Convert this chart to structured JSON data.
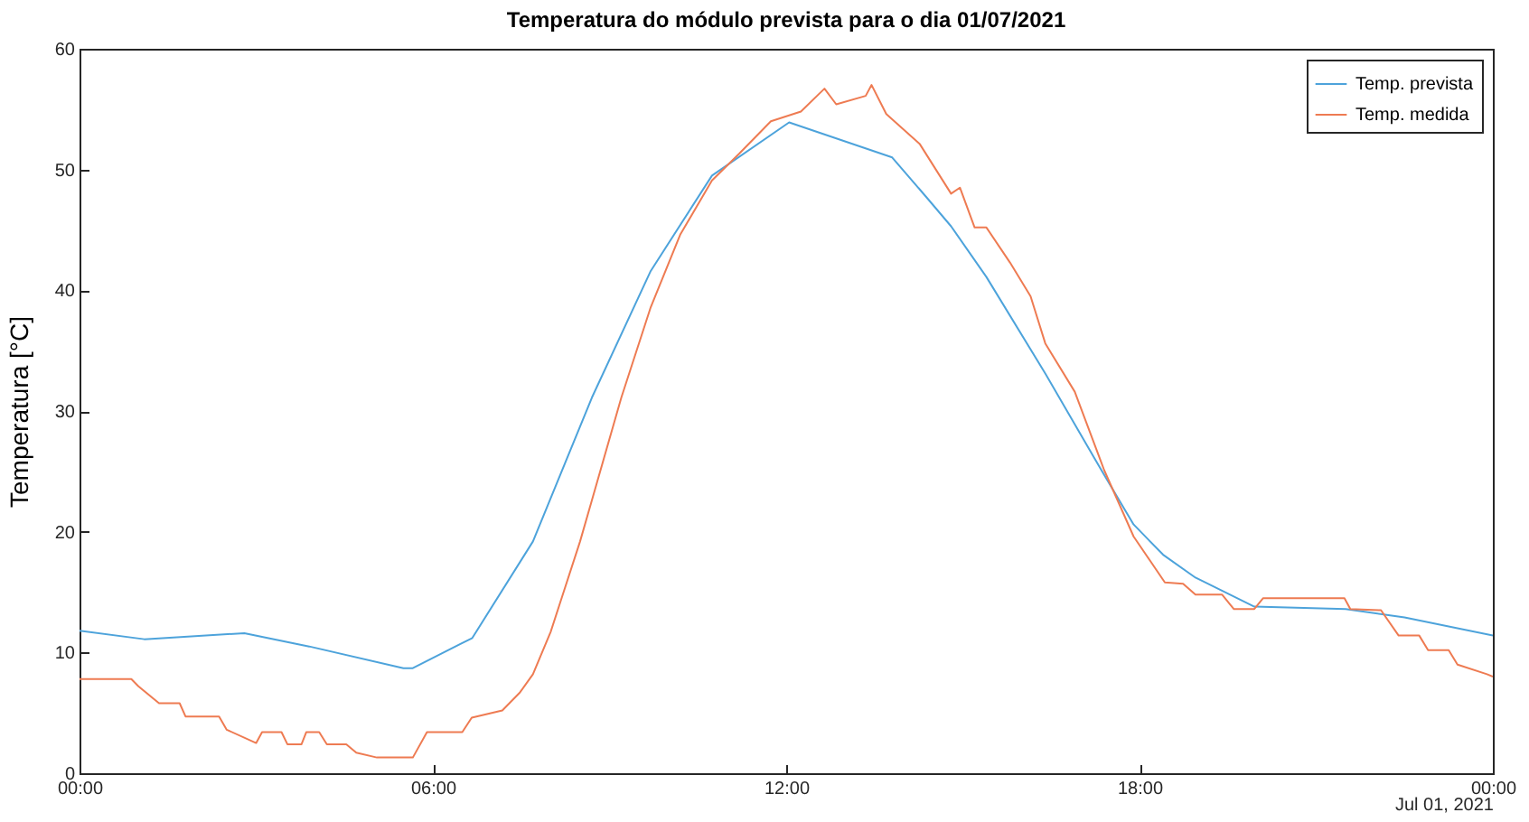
{
  "chart_data": {
    "type": "line",
    "title": "Temperatura do módulo prevista para o dia 01/07/2021",
    "ylabel": "Temperatura [°C]",
    "annotations": [
      "Jul 01, 2021"
    ],
    "xlim": [
      0,
      24
    ],
    "xticks": [
      {
        "value": 0,
        "label": "00:00"
      },
      {
        "value": 6,
        "label": "06:00"
      },
      {
        "value": 12,
        "label": "12:00"
      },
      {
        "value": 18,
        "label": "18:00"
      },
      {
        "value": 24,
        "label": "00:00"
      }
    ],
    "ylim": [
      0,
      60
    ],
    "yticks": [
      0,
      10,
      20,
      30,
      40,
      50,
      60
    ],
    "grid": false,
    "legend": "top right",
    "series": [
      {
        "name": "Temp. prevista",
        "color": "#4da3db",
        "x": [
          0,
          1.1,
          2.8,
          3.9,
          5.5,
          5.66,
          6.67,
          7.7,
          8.7,
          9.7,
          10.74,
          12.05,
          13.8,
          14.4,
          14.8,
          15.4,
          16.4,
          17.4,
          17.9,
          18.4,
          18.95,
          19.95,
          21.5,
          22.5,
          24
        ],
        "values": [
          11.8,
          11.1,
          11.6,
          10.5,
          8.7,
          8.7,
          11.2,
          19.2,
          31.1,
          41.6,
          49.5,
          53.9,
          51.0,
          47.6,
          45.3,
          41.1,
          33.1,
          24.7,
          20.6,
          18.1,
          16.2,
          13.8,
          13.6,
          12.9,
          11.4
        ]
      },
      {
        "name": "Temp. medida",
        "color": "#ee7b52",
        "x": [
          0,
          0.88,
          1.0,
          1.35,
          1.7,
          1.8,
          2.37,
          2.5,
          3.0,
          3.1,
          3.43,
          3.53,
          3.77,
          3.85,
          4.07,
          4.2,
          4.53,
          4.7,
          5.05,
          5.66,
          5.9,
          6.5,
          6.66,
          7.18,
          7.48,
          7.7,
          8.0,
          8.2,
          8.5,
          8.7,
          9.2,
          9.7,
          10.2,
          10.74,
          11.2,
          11.74,
          12.25,
          12.65,
          12.85,
          13.35,
          13.45,
          13.7,
          14.27,
          14.8,
          14.95,
          15.2,
          15.4,
          15.8,
          16.15,
          16.4,
          16.9,
          17.4,
          17.9,
          18.43,
          18.74,
          18.95,
          19.4,
          19.6,
          19.95,
          20.1,
          21.48,
          21.58,
          22.1,
          22.4,
          22.75,
          22.9,
          23.25,
          23.4,
          23.9,
          24
        ],
        "values": [
          7.8,
          7.8,
          7.2,
          5.8,
          5.8,
          4.7,
          4.7,
          3.6,
          2.5,
          3.4,
          3.4,
          2.4,
          2.4,
          3.4,
          3.4,
          2.4,
          2.4,
          1.7,
          1.3,
          1.3,
          3.4,
          3.4,
          4.6,
          5.2,
          6.7,
          8.2,
          11.7,
          14.7,
          19.2,
          22.6,
          31.1,
          38.6,
          44.6,
          49.1,
          51.3,
          54.0,
          54.8,
          56.7,
          55.4,
          56.1,
          57.0,
          54.6,
          52.1,
          48.0,
          48.5,
          45.2,
          45.2,
          42.3,
          39.5,
          35.6,
          31.6,
          25.1,
          19.6,
          15.8,
          15.7,
          14.8,
          14.8,
          13.6,
          13.6,
          14.5,
          14.5,
          13.6,
          13.5,
          11.4,
          11.4,
          10.2,
          10.2,
          9.0,
          8.2,
          8.0
        ]
      }
    ]
  }
}
